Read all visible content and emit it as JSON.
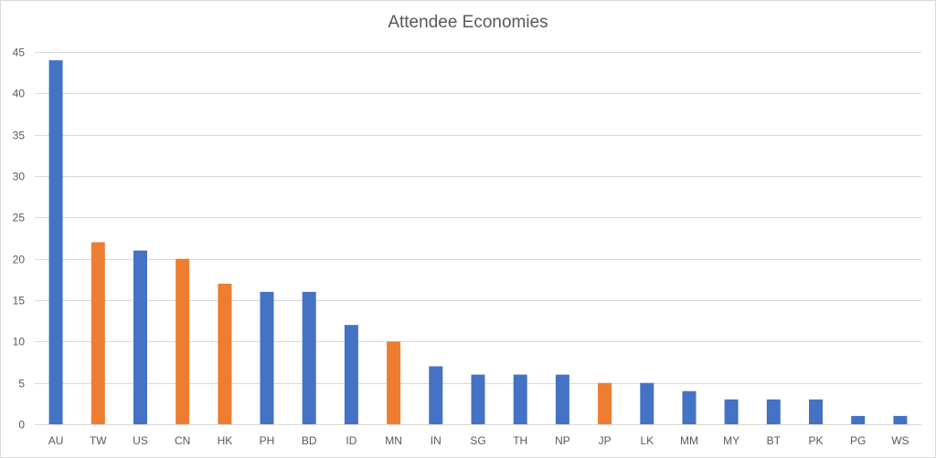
{
  "chart_data": {
    "type": "bar",
    "title": "Attendee Economies",
    "xlabel": "",
    "ylabel": "",
    "ylim": [
      0,
      45
    ],
    "yticks": [
      0,
      5,
      10,
      15,
      20,
      25,
      30,
      35,
      40,
      45
    ],
    "grid": true,
    "legend": "none",
    "categories": [
      "AU",
      "TW",
      "US",
      "CN",
      "HK",
      "PH",
      "BD",
      "ID",
      "MN",
      "IN",
      "SG",
      "TH",
      "NP",
      "JP",
      "LK",
      "MM",
      "MY",
      "BT",
      "PK",
      "PG",
      "WS"
    ],
    "values": [
      44,
      22,
      21,
      20,
      17,
      16,
      16,
      12,
      10,
      7,
      6,
      6,
      6,
      5,
      5,
      4,
      3,
      3,
      3,
      1,
      1
    ],
    "colors": [
      "#4472c4",
      "#ed7d31",
      "#4472c4",
      "#ed7d31",
      "#ed7d31",
      "#4472c4",
      "#4472c4",
      "#4472c4",
      "#ed7d31",
      "#4472c4",
      "#4472c4",
      "#4472c4",
      "#4472c4",
      "#ed7d31",
      "#4472c4",
      "#4472c4",
      "#4472c4",
      "#4472c4",
      "#4472c4",
      "#4472c4",
      "#4472c4"
    ],
    "palette": {
      "blue": "#4472c4",
      "orange": "#ed7d31",
      "gridline": "#d9d9d9",
      "text": "#595959"
    }
  }
}
